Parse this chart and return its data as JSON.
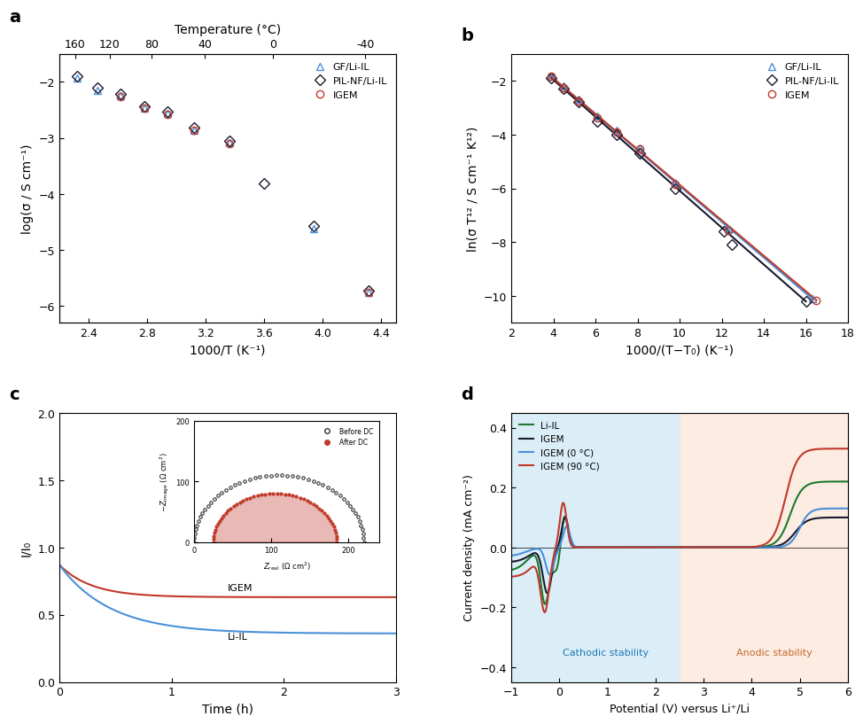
{
  "panel_a": {
    "title": "a",
    "xlabel": "1000/T (K⁻¹)",
    "ylabel": "log(σ / S cm⁻¹)",
    "top_xlabel": "Temperature (°C)",
    "top_xticks": [
      160,
      120,
      80,
      40,
      0,
      -40
    ],
    "xlim": [
      2.2,
      4.5
    ],
    "ylim": [
      -6.3,
      -1.5
    ],
    "yticks": [
      -6,
      -5,
      -4,
      -3,
      -2
    ],
    "xticks": [
      2.4,
      2.8,
      3.2,
      3.6,
      4.0,
      4.4
    ],
    "gf_x": [
      2.32,
      2.46,
      2.62,
      2.78,
      2.94,
      3.12,
      3.36,
      3.94,
      4.31
    ],
    "gf_y": [
      -1.94,
      -2.15,
      -2.25,
      -2.47,
      -2.57,
      -2.86,
      -3.08,
      -4.62,
      -5.76
    ],
    "pilnf_x": [
      2.32,
      2.46,
      2.62,
      2.78,
      2.94,
      3.12,
      3.36,
      3.6,
      3.94,
      4.31
    ],
    "pilnf_y": [
      -1.9,
      -2.1,
      -2.22,
      -2.44,
      -2.54,
      -2.82,
      -3.06,
      -3.82,
      -4.57,
      -5.72
    ],
    "igem_x": [
      2.62,
      2.78,
      2.94,
      3.12,
      3.36,
      4.31
    ],
    "igem_y": [
      -2.27,
      -2.47,
      -2.58,
      -2.87,
      -3.1,
      -5.76
    ],
    "gf_color": "#4a90d9",
    "pilnf_color": "#1a1a2e",
    "igem_color": "#c0392b"
  },
  "panel_b": {
    "title": "b",
    "xlabel": "1000/(T−T₀) (K⁻¹)",
    "ylabel": "ln(σ T¹² / S cm⁻¹ K¹²)",
    "xlim": [
      2,
      18
    ],
    "ylim": [
      -11,
      -1
    ],
    "xticks": [
      2,
      4,
      6,
      8,
      10,
      12,
      14,
      16,
      18
    ],
    "yticks": [
      -10,
      -8,
      -6,
      -4,
      -2
    ],
    "gf_x": [
      3.9,
      4.5,
      5.2,
      6.1,
      7.0,
      8.1,
      9.8,
      12.3,
      16.3
    ],
    "gf_y": [
      -1.85,
      -2.2,
      -2.7,
      -3.3,
      -3.85,
      -4.5,
      -5.8,
      -7.5,
      -10.1
    ],
    "pilnf_x": [
      3.9,
      4.5,
      5.2,
      6.1,
      7.0,
      8.1,
      9.8,
      12.1,
      12.5,
      16.0
    ],
    "pilnf_y": [
      -1.9,
      -2.3,
      -2.8,
      -3.5,
      -4.0,
      -4.7,
      -6.0,
      -7.6,
      -8.1,
      -10.2
    ],
    "igem_x": [
      3.9,
      4.5,
      5.2,
      6.1,
      7.0,
      8.1,
      9.8,
      12.3,
      16.5
    ],
    "igem_y": [
      -1.85,
      -2.25,
      -2.75,
      -3.38,
      -3.9,
      -4.55,
      -5.85,
      -7.55,
      -10.15
    ],
    "gf_line_x": [
      3.9,
      16.3
    ],
    "gf_line_y": [
      -1.85,
      -10.1
    ],
    "pilnf_line_x": [
      3.9,
      16.0
    ],
    "pilnf_line_y": [
      -1.9,
      -10.2
    ],
    "igem_line_x": [
      3.9,
      16.5
    ],
    "igem_line_y": [
      -1.85,
      -10.15
    ],
    "gf_color": "#4a90d9",
    "pilnf_color": "#1a1a2e",
    "igem_color": "#c0392b"
  },
  "panel_c": {
    "title": "c",
    "xlabel": "Time (h)",
    "ylabel": "I/I₀",
    "xlim": [
      0,
      3
    ],
    "ylim": [
      0,
      2.0
    ],
    "yticks": [
      0,
      0.5,
      1.0,
      1.5,
      2.0
    ],
    "xticks": [
      0,
      1,
      2,
      3
    ],
    "igem_color": "#c0392b",
    "liil_color": "#4a90d9",
    "inset_before_color": "#333333",
    "inset_after_color": "#c0392b"
  },
  "panel_d": {
    "title": "d",
    "xlabel": "Potential (V) versus Li⁺/Li",
    "ylabel": "Current density (mA cm⁻²)",
    "xlim": [
      -1,
      6
    ],
    "ylim": [
      -0.45,
      0.45
    ],
    "yticks": [
      -0.4,
      -0.2,
      0,
      0.2,
      0.4
    ],
    "xticks": [
      -1,
      0,
      1,
      2,
      3,
      4,
      5,
      6
    ],
    "cathodic_color": "#cce8f4",
    "anodic_color": "#fce4d6",
    "cathodic_label": "Cathodic stability",
    "anodic_label": "Anodic stability",
    "cathodic_xlim": [
      -1,
      2.5
    ],
    "anodic_xlim": [
      2.5,
      6
    ],
    "liil_color": "#1a7a2e",
    "igem_color": "#1a1a2e",
    "igem0_color": "#4a90d9",
    "igem90_color": "#c0392b"
  }
}
